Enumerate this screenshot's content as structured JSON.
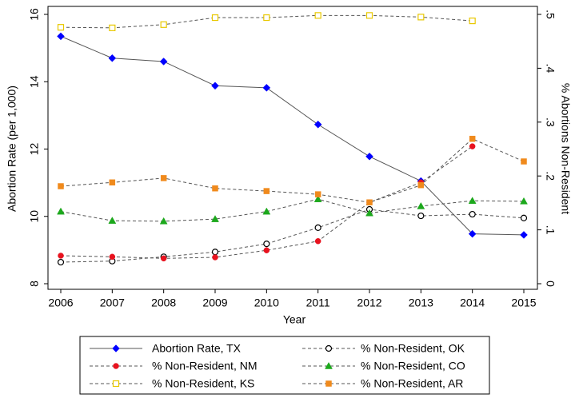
{
  "chart_data": {
    "type": "line",
    "x": [
      2006,
      2007,
      2008,
      2009,
      2010,
      2011,
      2012,
      2013,
      2014,
      2015
    ],
    "xlim": [
      2006,
      2015
    ],
    "xticks": [
      2006,
      2007,
      2008,
      2009,
      2010,
      2011,
      2012,
      2013,
      2014,
      2015
    ],
    "x_label": "Year",
    "y_label": "Abortion Rate (per 1,000)",
    "y2_label": "% Abortions Non-Resident",
    "ylim": [
      8,
      16
    ],
    "yticks": [
      8,
      10,
      12,
      14,
      16
    ],
    "y2lim": [
      0,
      0.5
    ],
    "y2ticks": [
      0,
      {
        "value": 0.1,
        "label": ".1"
      },
      {
        "value": 0.2,
        "label": ".2"
      },
      {
        "value": 0.3,
        "label": ".3"
      },
      {
        "value": 0.4,
        "label": ".4"
      },
      {
        "value": 0.5,
        "label": ".5"
      }
    ],
    "line_color": "#555555",
    "series": [
      {
        "name": "Abortion Rate, TX",
        "color": "#0000ff",
        "marker": "diamond",
        "line_style": "solid",
        "values": [
          15.35,
          14.7,
          14.6,
          13.88,
          13.82,
          12.73,
          11.78,
          11.05,
          9.48,
          9.45
        ]
      },
      {
        "name": "% Non-Resident, OK",
        "color": "#000000",
        "marker": "circle-open",
        "line_style": "dashed",
        "axis": "y2",
        "values": [
          0.04,
          0.042,
          0.05,
          0.059,
          0.074,
          0.104,
          0.138,
          0.126,
          0.129,
          0.122
        ]
      },
      {
        "name": "% Non-Resident, NM",
        "color": "#e8121e",
        "marker": "circle",
        "line_style": "dashed",
        "axis": "y2",
        "values": [
          0.052,
          0.05,
          0.047,
          0.049,
          0.062,
          0.079,
          0.151,
          0.188,
          0.255,
          null
        ]
      },
      {
        "name": "% Non-Resident, CO",
        "color": "#1ca81c",
        "marker": "triangle",
        "line_style": "dashed",
        "axis": "y2",
        "values": [
          0.134,
          0.117,
          0.116,
          0.12,
          0.134,
          0.157,
          0.131,
          0.144,
          0.154,
          0.153
        ]
      },
      {
        "name": "% Non-Resident, KS",
        "color": "#e8c800",
        "marker": "square-open",
        "line_style": "dashed",
        "axis": "y2",
        "values": [
          0.476,
          0.475,
          0.481,
          0.494,
          0.494,
          0.498,
          0.498,
          0.495,
          0.488,
          null
        ]
      },
      {
        "name": "% Non-Resident, AR",
        "color": "#f08a1c",
        "marker": "square",
        "line_style": "dashed",
        "axis": "y2",
        "values": [
          0.181,
          0.188,
          0.196,
          0.177,
          0.172,
          0.166,
          0.151,
          0.183,
          0.269,
          0.227
        ]
      }
    ]
  }
}
